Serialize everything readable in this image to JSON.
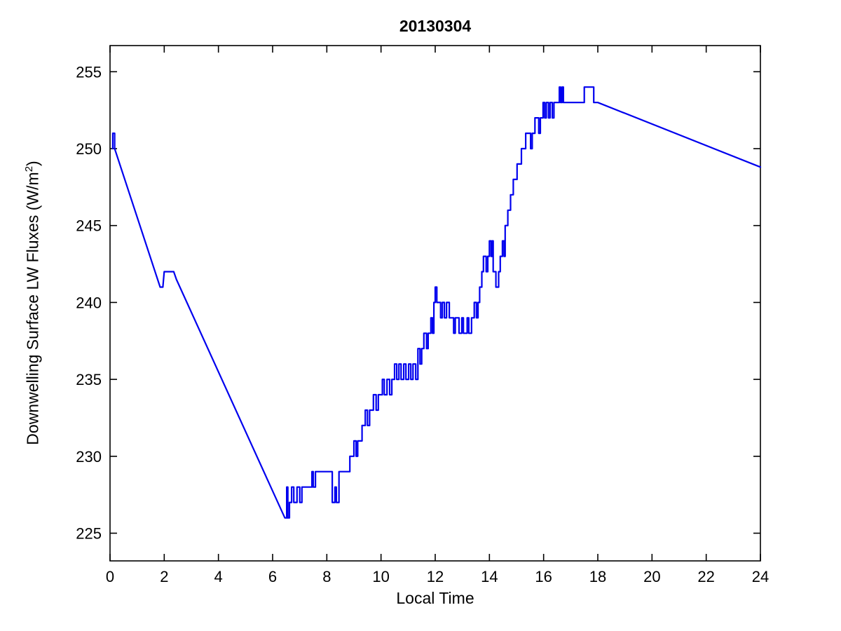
{
  "figure": {
    "title": "20130304",
    "xlabel": "Local Time",
    "ylabel_pre": "Downwelling Surface LW Fluxes (W/m",
    "ylabel_sup": "2",
    "ylabel_post": ")"
  },
  "chart_data": {
    "type": "line",
    "title": "20130304",
    "xlabel": "Local Time",
    "ylabel": "Downwelling Surface LW Fluxes (W/m^2)",
    "xlim": [
      0,
      24
    ],
    "ylim": [
      223.2,
      256.7
    ],
    "xticks": [
      0,
      2,
      4,
      6,
      8,
      10,
      12,
      14,
      16,
      18,
      20,
      22,
      24
    ],
    "yticks": [
      225,
      230,
      235,
      240,
      245,
      250,
      255
    ],
    "grid": false,
    "legend": null,
    "line_color": "#0000ee",
    "line_width": 2.2,
    "axis_color": "#000000",
    "series": [
      {
        "name": "downwelling-surface-lw-flux",
        "points": [
          [
            0.1,
            250
          ],
          [
            0.1,
            251
          ],
          [
            0.17,
            251
          ],
          [
            0.17,
            250
          ],
          [
            1.85,
            241
          ],
          [
            1.95,
            241
          ],
          [
            2.0,
            242
          ],
          [
            2.35,
            242
          ],
          [
            2.45,
            241.5
          ],
          [
            6.45,
            226
          ],
          [
            6.52,
            226
          ],
          [
            6.52,
            228
          ],
          [
            6.56,
            228
          ],
          [
            6.56,
            226
          ],
          [
            6.62,
            226
          ],
          [
            6.62,
            227
          ],
          [
            6.7,
            227
          ],
          [
            6.7,
            228
          ],
          [
            6.78,
            228
          ],
          [
            6.78,
            227
          ],
          [
            6.9,
            227
          ],
          [
            6.9,
            228
          ],
          [
            7.0,
            228
          ],
          [
            7.0,
            227
          ],
          [
            7.08,
            227
          ],
          [
            7.08,
            228
          ],
          [
            7.3,
            228
          ],
          [
            7.45,
            228
          ],
          [
            7.45,
            229
          ],
          [
            7.5,
            229
          ],
          [
            7.5,
            228
          ],
          [
            7.58,
            228
          ],
          [
            7.58,
            229
          ],
          [
            7.65,
            229
          ],
          [
            8.2,
            229
          ],
          [
            8.2,
            227
          ],
          [
            8.3,
            227
          ],
          [
            8.3,
            228
          ],
          [
            8.35,
            228
          ],
          [
            8.35,
            227
          ],
          [
            8.45,
            227
          ],
          [
            8.45,
            229
          ],
          [
            8.85,
            229
          ],
          [
            8.85,
            230
          ],
          [
            9.0,
            230
          ],
          [
            9.0,
            231
          ],
          [
            9.08,
            231
          ],
          [
            9.08,
            230
          ],
          [
            9.14,
            230
          ],
          [
            9.14,
            231
          ],
          [
            9.3,
            231
          ],
          [
            9.3,
            232
          ],
          [
            9.42,
            232
          ],
          [
            9.42,
            233
          ],
          [
            9.5,
            233
          ],
          [
            9.5,
            232
          ],
          [
            9.58,
            232
          ],
          [
            9.58,
            233
          ],
          [
            9.72,
            233
          ],
          [
            9.72,
            234
          ],
          [
            9.82,
            234
          ],
          [
            9.82,
            233
          ],
          [
            9.9,
            233
          ],
          [
            9.9,
            234
          ],
          [
            10.05,
            234
          ],
          [
            10.05,
            235
          ],
          [
            10.12,
            235
          ],
          [
            10.12,
            234
          ],
          [
            10.22,
            234
          ],
          [
            10.22,
            235
          ],
          [
            10.32,
            235
          ],
          [
            10.32,
            234
          ],
          [
            10.4,
            234
          ],
          [
            10.4,
            235
          ],
          [
            10.5,
            235
          ],
          [
            10.5,
            236
          ],
          [
            10.58,
            236
          ],
          [
            10.58,
            235
          ],
          [
            10.66,
            235
          ],
          [
            10.66,
            236
          ],
          [
            10.74,
            236
          ],
          [
            10.74,
            235
          ],
          [
            10.84,
            235
          ],
          [
            10.84,
            236
          ],
          [
            10.92,
            236
          ],
          [
            10.92,
            235
          ],
          [
            11.02,
            235
          ],
          [
            11.02,
            236
          ],
          [
            11.1,
            236
          ],
          [
            11.1,
            235
          ],
          [
            11.18,
            235
          ],
          [
            11.18,
            236
          ],
          [
            11.28,
            236
          ],
          [
            11.28,
            235
          ],
          [
            11.36,
            235
          ],
          [
            11.36,
            237
          ],
          [
            11.44,
            237
          ],
          [
            11.44,
            236
          ],
          [
            11.5,
            236
          ],
          [
            11.5,
            237
          ],
          [
            11.58,
            237
          ],
          [
            11.58,
            238
          ],
          [
            11.68,
            238
          ],
          [
            11.68,
            237
          ],
          [
            11.74,
            237
          ],
          [
            11.74,
            238
          ],
          [
            11.84,
            238
          ],
          [
            11.84,
            239
          ],
          [
            11.9,
            239
          ],
          [
            11.9,
            238
          ],
          [
            11.95,
            238
          ],
          [
            11.95,
            240
          ],
          [
            12.0,
            240
          ],
          [
            12.0,
            241
          ],
          [
            12.06,
            241
          ],
          [
            12.06,
            240
          ],
          [
            12.2,
            240
          ],
          [
            12.2,
            239
          ],
          [
            12.26,
            239
          ],
          [
            12.26,
            240
          ],
          [
            12.34,
            240
          ],
          [
            12.34,
            239
          ],
          [
            12.42,
            239
          ],
          [
            12.42,
            240
          ],
          [
            12.52,
            240
          ],
          [
            12.52,
            239
          ],
          [
            12.68,
            239
          ],
          [
            12.68,
            238
          ],
          [
            12.74,
            238
          ],
          [
            12.74,
            239
          ],
          [
            12.88,
            239
          ],
          [
            12.88,
            238
          ],
          [
            12.98,
            238
          ],
          [
            12.98,
            239
          ],
          [
            13.04,
            239
          ],
          [
            13.04,
            238
          ],
          [
            13.18,
            238
          ],
          [
            13.18,
            239
          ],
          [
            13.24,
            239
          ],
          [
            13.24,
            238
          ],
          [
            13.34,
            238
          ],
          [
            13.34,
            239
          ],
          [
            13.44,
            239
          ],
          [
            13.44,
            240
          ],
          [
            13.52,
            240
          ],
          [
            13.52,
            239
          ],
          [
            13.58,
            239
          ],
          [
            13.58,
            240
          ],
          [
            13.64,
            240
          ],
          [
            13.64,
            241
          ],
          [
            13.72,
            241
          ],
          [
            13.72,
            242
          ],
          [
            13.78,
            242
          ],
          [
            13.78,
            243
          ],
          [
            13.88,
            243
          ],
          [
            13.88,
            242
          ],
          [
            13.94,
            242
          ],
          [
            13.94,
            243
          ],
          [
            14.0,
            243
          ],
          [
            14.0,
            244
          ],
          [
            14.06,
            244
          ],
          [
            14.06,
            243
          ],
          [
            14.1,
            243
          ],
          [
            14.1,
            244
          ],
          [
            14.14,
            244
          ],
          [
            14.14,
            242
          ],
          [
            14.24,
            242
          ],
          [
            14.24,
            241
          ],
          [
            14.34,
            241
          ],
          [
            14.34,
            242
          ],
          [
            14.4,
            242
          ],
          [
            14.4,
            243
          ],
          [
            14.48,
            243
          ],
          [
            14.48,
            244
          ],
          [
            14.54,
            244
          ],
          [
            14.54,
            243
          ],
          [
            14.58,
            243
          ],
          [
            14.58,
            245
          ],
          [
            14.68,
            245
          ],
          [
            14.68,
            246
          ],
          [
            14.78,
            246
          ],
          [
            14.78,
            247
          ],
          [
            14.88,
            247
          ],
          [
            14.88,
            248
          ],
          [
            15.02,
            248
          ],
          [
            15.02,
            249
          ],
          [
            15.18,
            249
          ],
          [
            15.18,
            250
          ],
          [
            15.34,
            250
          ],
          [
            15.34,
            251
          ],
          [
            15.52,
            251
          ],
          [
            15.52,
            250
          ],
          [
            15.58,
            250
          ],
          [
            15.58,
            251
          ],
          [
            15.68,
            251
          ],
          [
            15.68,
            252
          ],
          [
            15.82,
            252
          ],
          [
            15.82,
            251
          ],
          [
            15.88,
            251
          ],
          [
            15.88,
            252
          ],
          [
            15.98,
            252
          ],
          [
            15.98,
            253
          ],
          [
            16.04,
            253
          ],
          [
            16.04,
            252
          ],
          [
            16.1,
            252
          ],
          [
            16.1,
            253
          ],
          [
            16.18,
            253
          ],
          [
            16.18,
            252
          ],
          [
            16.24,
            252
          ],
          [
            16.24,
            253
          ],
          [
            16.32,
            253
          ],
          [
            16.32,
            252
          ],
          [
            16.38,
            252
          ],
          [
            16.38,
            253
          ],
          [
            16.58,
            253
          ],
          [
            16.58,
            254
          ],
          [
            16.63,
            254
          ],
          [
            16.63,
            253
          ],
          [
            16.68,
            253
          ],
          [
            16.68,
            254
          ],
          [
            16.73,
            254
          ],
          [
            16.73,
            253
          ],
          [
            17.5,
            253
          ],
          [
            17.5,
            254
          ],
          [
            17.85,
            254
          ],
          [
            17.85,
            253
          ],
          [
            18.0,
            253
          ],
          [
            24.0,
            248.8
          ]
        ]
      }
    ]
  }
}
